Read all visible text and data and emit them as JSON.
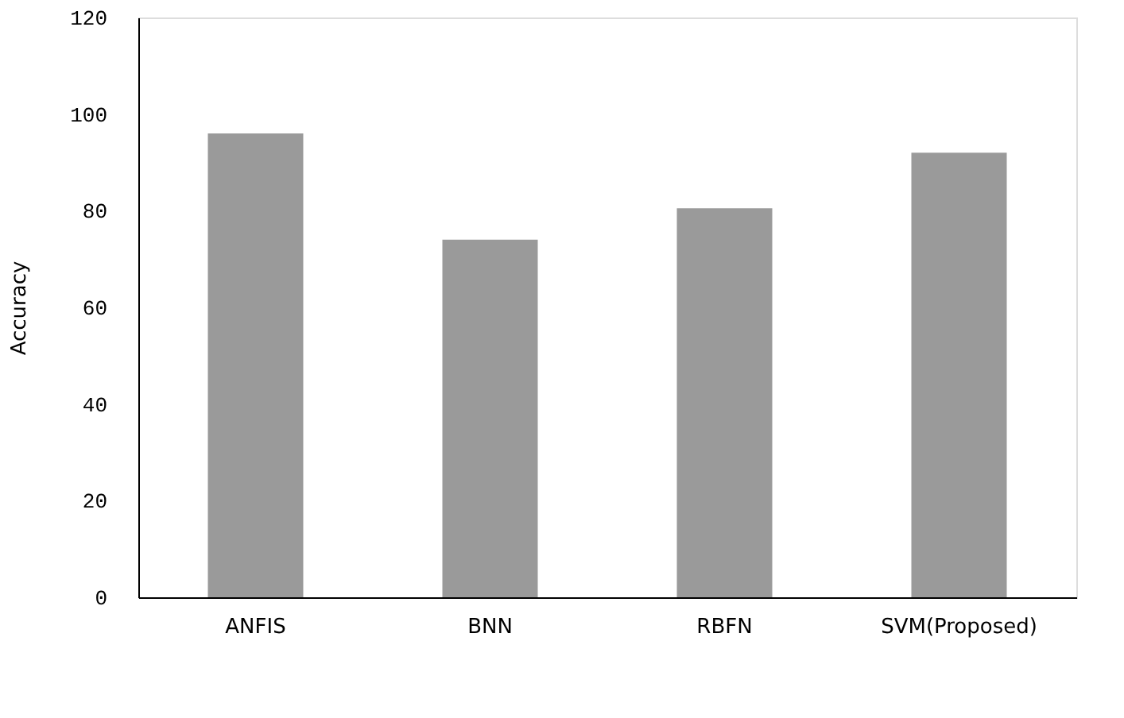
{
  "chart_data": {
    "type": "bar",
    "ylabel": "Accuracy",
    "categories": [
      "ANFIS",
      "BNN",
      "RBFN",
      "SVM(Proposed)"
    ],
    "values": [
      96,
      74,
      80.5,
      92
    ],
    "color": "#9a9a9a",
    "ylim": [
      0,
      120
    ],
    "yticks": [
      0,
      20,
      40,
      60,
      80,
      100,
      120
    ],
    "grid": false
  }
}
